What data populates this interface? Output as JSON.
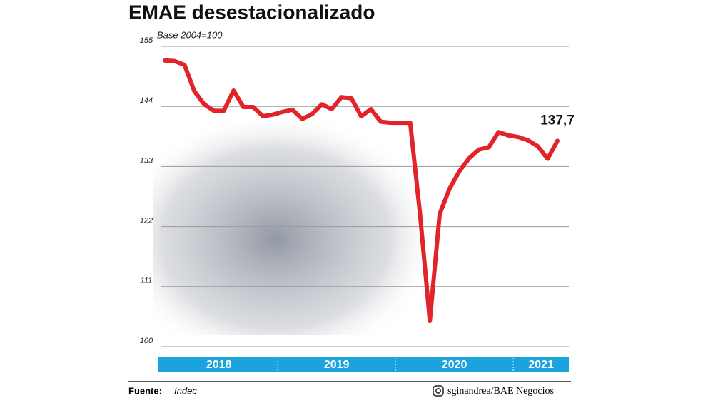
{
  "chart_data": {
    "type": "line",
    "title": "EMAE desestacionalizado",
    "subtitle": "Base 2004=100",
    "values": [
      152.4,
      152.3,
      151.6,
      146.8,
      144.4,
      143.2,
      143.2,
      146.9,
      143.9,
      143.9,
      142.2,
      142.5,
      143.0,
      143.4,
      141.7,
      142.6,
      144.4,
      143.5,
      145.7,
      145.5,
      142.2,
      143.5,
      141.2,
      141.0,
      141.0,
      141.0,
      124.3,
      104.7,
      124.3,
      128.9,
      132.1,
      134.5,
      136.1,
      136.5,
      139.3,
      138.7,
      138.4,
      137.8,
      136.7,
      134.4,
      137.7
    ],
    "value_labels": [
      null,
      null,
      null,
      null,
      null,
      null,
      null,
      null,
      null,
      null,
      null,
      null,
      null,
      null,
      null,
      null,
      null,
      null,
      null,
      null,
      null,
      null,
      null,
      null,
      null,
      null,
      null,
      null,
      null,
      null,
      null,
      null,
      null,
      null,
      null,
      null,
      null,
      null,
      null,
      null,
      "137,7"
    ],
    "color": "#e3232a",
    "year_bands": [
      {
        "label": "2018",
        "months": 12
      },
      {
        "label": "2019",
        "months": 12
      },
      {
        "label": "2020",
        "months": 12
      },
      {
        "label": "2021",
        "months": 5
      }
    ],
    "ylim": [
      100,
      155
    ],
    "yticks": [
      155,
      144,
      133,
      122,
      111,
      100
    ],
    "grid": true
  },
  "footer": {
    "source_label": "Fuente:",
    "source": "Indec",
    "credit": "sginandrea/BAE Negocios"
  }
}
